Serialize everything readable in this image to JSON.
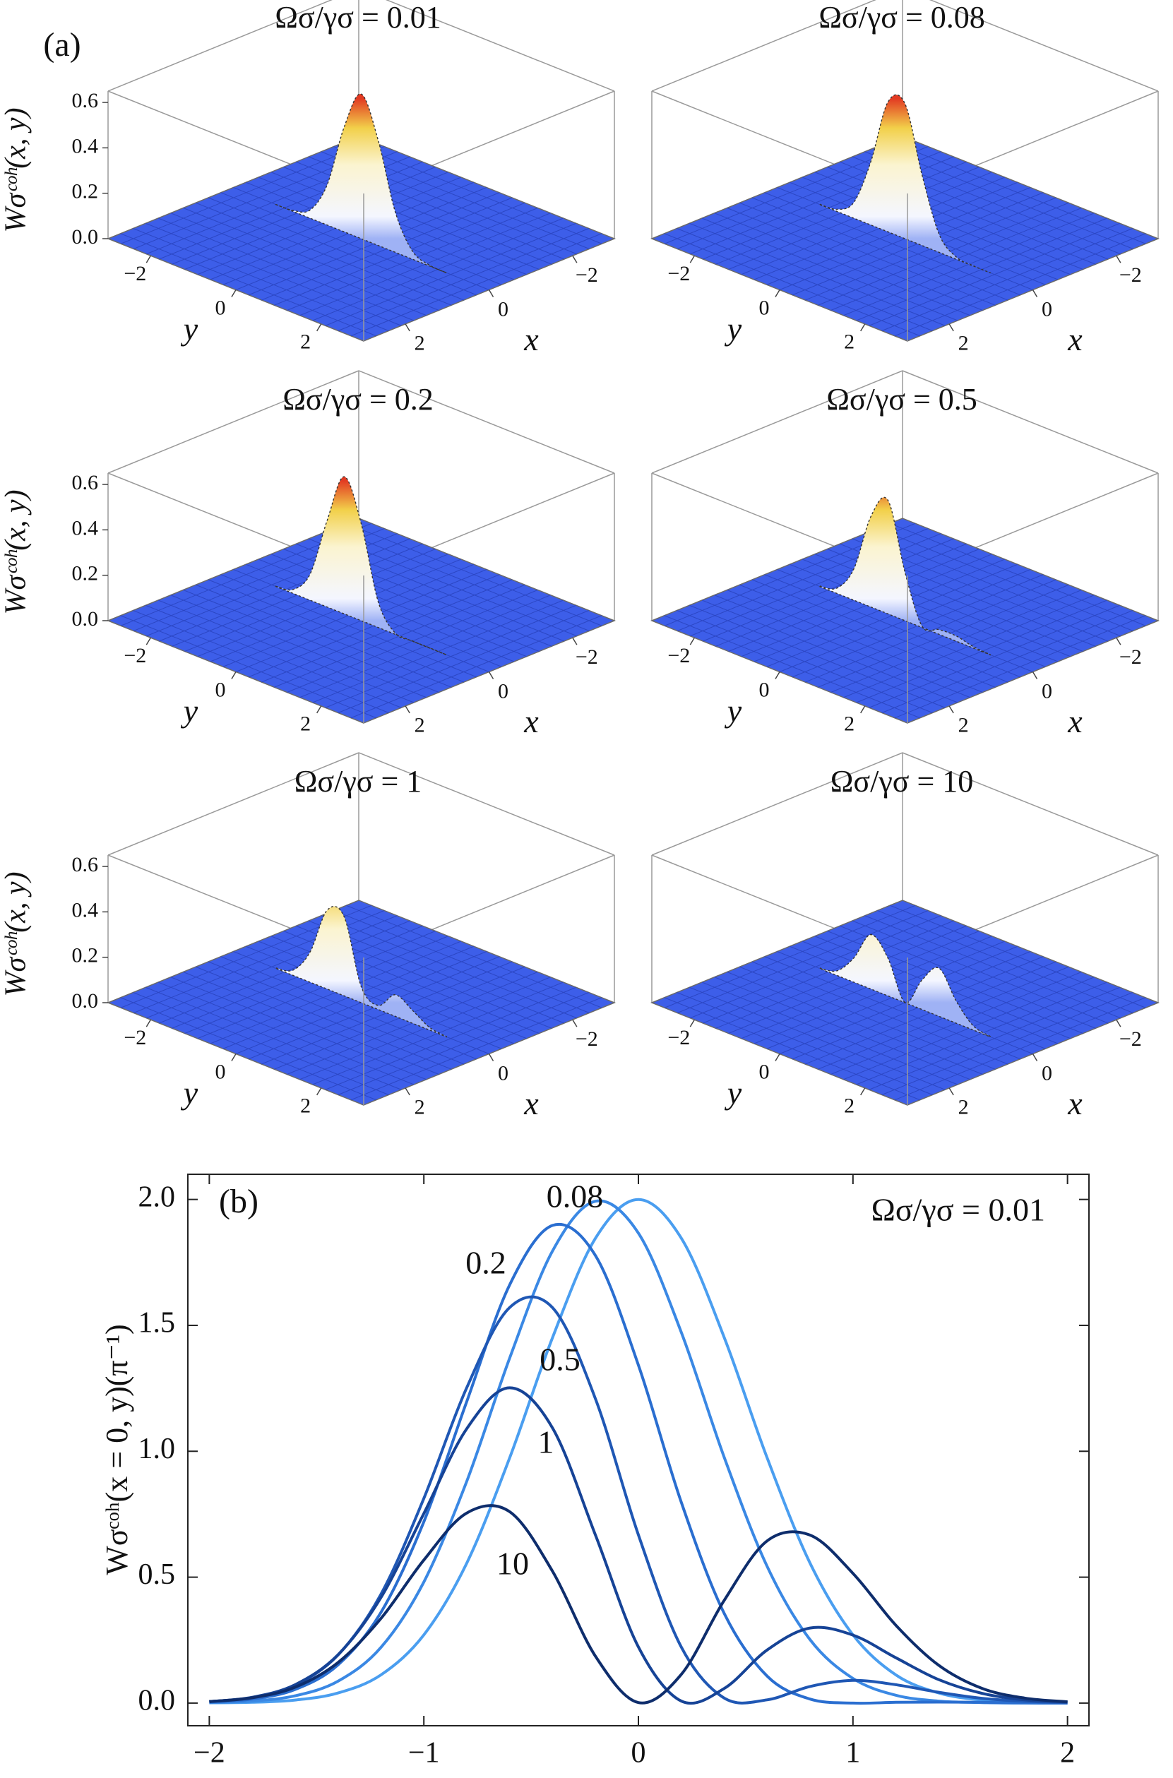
{
  "chart_data": [
    {
      "type": "surface",
      "panel_label": "(a)",
      "title": "Ωσ/γσ = 0.01",
      "x_label": "x",
      "y_label": "y",
      "z_label": "Wσᶜᵒʰ(x, y)",
      "xlim": [
        -3,
        3
      ],
      "ylim": [
        -3,
        3
      ],
      "zlim": [
        0,
        0.65
      ],
      "xticks": [
        {
          "value": -2,
          "label": "−2"
        },
        0,
        2
      ],
      "yticks": [
        {
          "value": -2,
          "label": "−2"
        },
        0,
        2
      ],
      "zticks": [
        {
          "value": 0,
          "label": "0.0"
        },
        {
          "value": 0.2,
          "label": "0.2"
        },
        {
          "value": 0.4,
          "label": "0.4"
        },
        {
          "value": 0.6,
          "label": "0.6"
        }
      ],
      "y": [
        -2,
        -1.6,
        -1.2,
        -0.8,
        -0.4,
        0,
        0.4,
        0.8,
        1.2,
        1.6,
        2
      ],
      "values": [
        0.0,
        0.004,
        0.036,
        0.177,
        0.462,
        0.637,
        0.462,
        0.177,
        0.036,
        0.004,
        0.0
      ]
    },
    {
      "type": "surface",
      "title": "Ωσ/γσ = 0.08",
      "x_label": "x",
      "y_label": "y",
      "xlim": [
        -3,
        3
      ],
      "ylim": [
        -3,
        3
      ],
      "zlim": [
        0,
        0.65
      ],
      "xticks": [
        {
          "value": -2,
          "label": "−2"
        },
        0,
        2
      ],
      "yticks": [
        {
          "value": -2,
          "label": "−2"
        },
        0,
        2
      ],
      "y": [
        -2,
        -1.6,
        -1.2,
        -0.8,
        -0.4,
        0,
        0.4,
        0.8,
        1.2,
        1.6,
        2
      ],
      "values": [
        0.001,
        0.009,
        0.07,
        0.28,
        0.572,
        0.594,
        0.311,
        0.08,
        0.01,
        0.001,
        0.0
      ]
    },
    {
      "type": "surface",
      "title": "Ωσ/γσ = 0.2",
      "x_label": "x",
      "y_label": "y",
      "z_label": "Wσᶜᵒʰ(x, y)",
      "xlim": [
        -3,
        3
      ],
      "ylim": [
        -3,
        3
      ],
      "zlim": [
        0,
        0.65
      ],
      "xticks": [
        {
          "value": -2,
          "label": "−2"
        },
        0,
        2
      ],
      "yticks": [
        {
          "value": -2,
          "label": "−2"
        },
        0,
        2
      ],
      "zticks": [
        {
          "value": 0,
          "label": "0.0"
        },
        {
          "value": 0.2,
          "label": "0.2"
        },
        {
          "value": 0.4,
          "label": "0.4"
        },
        {
          "value": 0.6,
          "label": "0.6"
        }
      ],
      "y": [
        -2,
        -1.6,
        -1.2,
        -0.8,
        -0.4,
        0,
        0.4,
        0.8,
        1.2,
        1.6,
        2
      ],
      "values": [
        0.001,
        0.017,
        0.115,
        0.381,
        0.604,
        0.427,
        0.113,
        0.005,
        0.001,
        0.001,
        0.0
      ]
    },
    {
      "type": "surface",
      "title": "Ωσ/γσ = 0.5",
      "x_label": "x",
      "y_label": "y",
      "xlim": [
        -3,
        3
      ],
      "ylim": [
        -3,
        3
      ],
      "zlim": [
        0,
        0.65
      ],
      "xticks": [
        {
          "value": -2,
          "label": "−2"
        },
        0,
        2
      ],
      "yticks": [
        {
          "value": -2,
          "label": "−2"
        },
        0,
        2
      ],
      "y": [
        -2,
        -1.6,
        -1.2,
        -0.8,
        -0.4,
        0,
        0.4,
        0.8,
        1.2,
        1.6,
        2
      ],
      "values": [
        0.002,
        0.023,
        0.138,
        0.399,
        0.5,
        0.213,
        0.006,
        0.021,
        0.023,
        0.006,
        0.001
      ]
    },
    {
      "type": "surface",
      "title": "Ωσ/γσ = 1",
      "x_label": "x",
      "y_label": "y",
      "z_label": "Wσᶜᵒʰ(x, y)",
      "xlim": [
        -3,
        3
      ],
      "ylim": [
        -3,
        3
      ],
      "zlim": [
        0,
        0.65
      ],
      "xticks": [
        {
          "value": -2,
          "label": "−2"
        },
        0,
        2
      ],
      "yticks": [
        {
          "value": -2,
          "label": "−2"
        },
        0,
        2
      ],
      "zticks": [
        {
          "value": 0,
          "label": "0.0"
        },
        {
          "value": 0.2,
          "label": "0.2"
        },
        {
          "value": 0.4,
          "label": "0.4"
        },
        {
          "value": 0.6,
          "label": "0.6"
        }
      ],
      "y": [
        -2,
        -1.6,
        -1.2,
        -0.8,
        -0.4,
        0,
        0.4,
        0.8,
        1.2,
        1.6,
        2
      ],
      "values": [
        0.002,
        0.023,
        0.133,
        0.347,
        0.348,
        0.071,
        0.018,
        0.095,
        0.057,
        0.012,
        0.001
      ]
    },
    {
      "type": "surface",
      "title": "Ωσ/γσ = 10",
      "x_label": "x",
      "y_label": "y",
      "xlim": [
        -3,
        3
      ],
      "ylim": [
        -3,
        3
      ],
      "zlim": [
        0,
        0.65
      ],
      "xticks": [
        {
          "value": -2,
          "label": "−2"
        },
        0,
        2
      ],
      "yticks": [
        {
          "value": -2,
          "label": "−2"
        },
        0,
        2
      ],
      "y": [
        -2,
        -1.6,
        -1.2,
        -0.8,
        -0.4,
        0,
        0.4,
        0.8,
        1.2,
        1.6,
        2
      ],
      "values": [
        0.002,
        0.02,
        0.107,
        0.24,
        0.166,
        0.001,
        0.13,
        0.212,
        0.098,
        0.019,
        0.002
      ]
    },
    {
      "type": "line",
      "panel_label": "(b)",
      "y_label": "Wσᶜᵒʰ(x = 0, y)(π⁻¹)",
      "xlim": [
        -2.1,
        2.1
      ],
      "ylim": [
        -0.09,
        2.1
      ],
      "xticks": [
        {
          "value": -2,
          "label": "−2"
        },
        {
          "value": -1,
          "label": "−1"
        },
        0,
        1,
        2
      ],
      "yticks": [
        {
          "value": 0,
          "label": "0.0"
        },
        {
          "value": 0.5,
          "label": "0.5"
        },
        {
          "value": 1,
          "label": "1.0"
        },
        {
          "value": 1.5,
          "label": "1.5"
        },
        {
          "value": 2,
          "label": "2.0"
        }
      ],
      "x": [
        -2,
        -1.8,
        -1.6,
        -1.4,
        -1.2,
        -1,
        -0.8,
        -0.6,
        -0.4,
        -0.2,
        0,
        0.2,
        0.4,
        0.6,
        0.8,
        1,
        1.2,
        1.4,
        1.6,
        1.8,
        2
      ],
      "series": [
        {
          "name": "Ωσ/γσ = 0.01",
          "color": "#4a9ef0",
          "values": [
            0.001,
            0.003,
            0.012,
            0.04,
            0.112,
            0.271,
            0.556,
            0.974,
            1.452,
            1.846,
            2.0,
            1.846,
            1.452,
            0.974,
            0.556,
            0.271,
            0.112,
            0.04,
            0.012,
            0.003,
            0.001
          ]
        },
        {
          "name": "0.08",
          "color": "#3a88e4",
          "values": [
            0.002,
            0.008,
            0.029,
            0.087,
            0.221,
            0.481,
            0.881,
            1.37,
            1.796,
            1.993,
            1.866,
            1.472,
            0.976,
            0.543,
            0.252,
            0.098,
            0.031,
            0.008,
            0.002,
            0.0,
            0.0
          ]
        },
        {
          "name": "0.2",
          "color": "#2a6ed0",
          "values": [
            0.004,
            0.016,
            0.054,
            0.152,
            0.36,
            0.72,
            1.198,
            1.661,
            1.897,
            1.777,
            1.342,
            0.797,
            0.356,
            0.107,
            0.016,
            0.0,
            0.003,
            0.004,
            0.003,
            0.001,
            0.0
          ]
        },
        {
          "name": "0.5",
          "color": "#1f57b4",
          "values": [
            0.006,
            0.022,
            0.071,
            0.191,
            0.432,
            0.813,
            1.253,
            1.571,
            1.57,
            1.208,
            0.668,
            0.222,
            0.02,
            0.013,
            0.066,
            0.09,
            0.073,
            0.043,
            0.019,
            0.007,
            0.002
          ]
        },
        {
          "name": "1",
          "color": "#164396",
          "values": [
            0.006,
            0.023,
            0.073,
            0.192,
            0.419,
            0.753,
            1.09,
            1.252,
            1.092,
            0.667,
            0.223,
            0.008,
            0.058,
            0.211,
            0.298,
            0.27,
            0.18,
            0.093,
            0.039,
            0.013,
            0.004
          ]
        },
        {
          "name": "10",
          "color": "#0e2d6c",
          "values": [
            0.006,
            0.021,
            0.063,
            0.161,
            0.336,
            0.568,
            0.755,
            0.76,
            0.523,
            0.186,
            0.002,
            0.114,
            0.408,
            0.644,
            0.667,
            0.515,
            0.309,
            0.15,
            0.059,
            0.02,
            0.005
          ]
        }
      ]
    }
  ]
}
